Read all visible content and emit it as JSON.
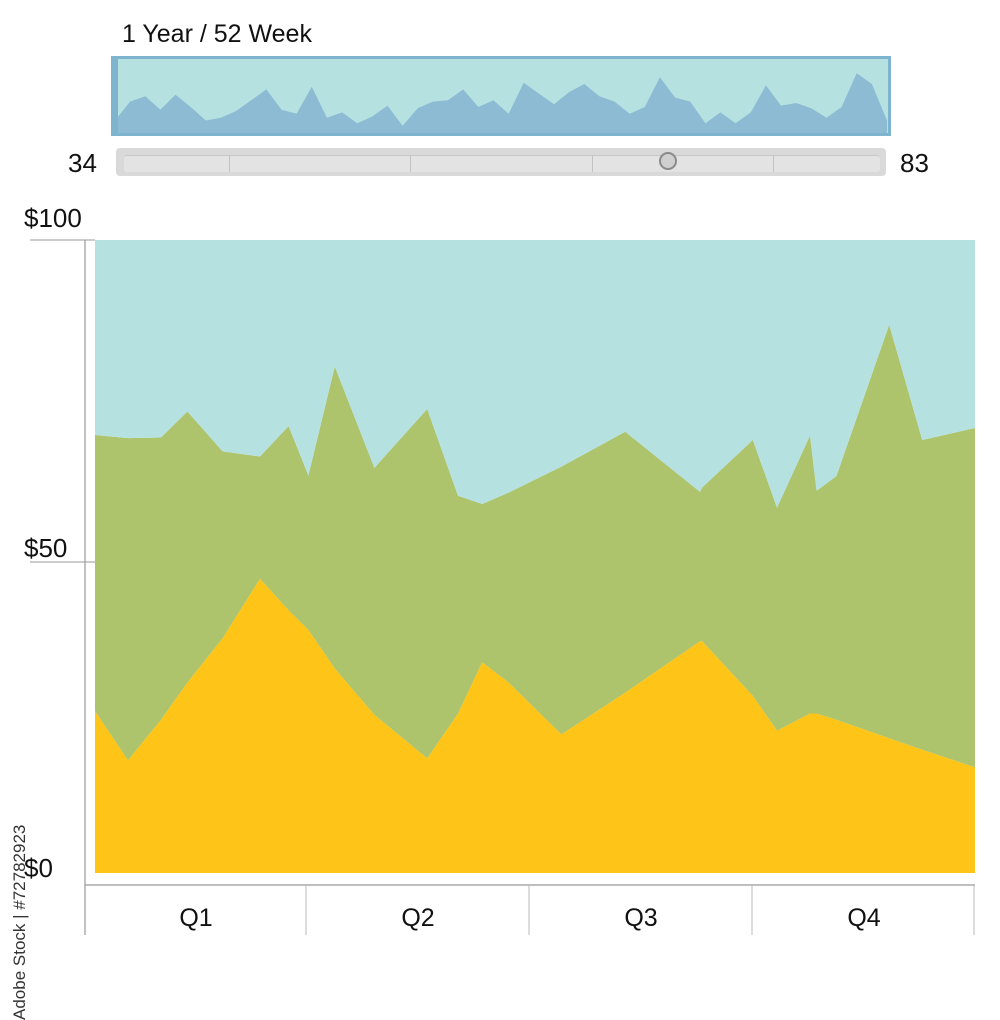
{
  "overview": {
    "title": "1 Year / 52 Week",
    "slider_min": "34",
    "slider_max": "83",
    "slider_position": 0.72,
    "colors": {
      "background": "#b5e1e1",
      "area": "#8dbbd3",
      "border": "#7fb4cf",
      "track": "#d9d9d9"
    }
  },
  "watermark": "Adobe Stock | #72782923",
  "chart_data": {
    "type": "area",
    "stacked": true,
    "categories": [
      "Q1",
      "Q2",
      "Q3",
      "Q4"
    ],
    "yticks": [
      "$0",
      "$50",
      "$100"
    ],
    "ylim": [
      0,
      100
    ],
    "xlim": [
      0,
      4
    ],
    "grid": false,
    "x": [
      0,
      0.15,
      0.3,
      0.42,
      0.58,
      0.75,
      0.88,
      0.97,
      1.09,
      1.27,
      1.51,
      1.65,
      1.76,
      1.88,
      2.12,
      2.41,
      2.75,
      2.76,
      2.99,
      3.1,
      3.25,
      3.28,
      3.37,
      3.61,
      3.76,
      4.0
    ],
    "series": [
      {
        "color": "#fec418",
        "values": [
          25.6,
          17.8,
          24.2,
          30.1,
          37.1,
          46.5,
          41.5,
          38.4,
          32.3,
          25.0,
          18.1,
          25.2,
          33.3,
          30.1,
          21.9,
          28.5,
          36.6,
          36.6,
          28.0,
          22.5,
          25.2,
          25.2,
          24.2,
          21.3,
          19.5,
          16.7
        ]
      },
      {
        "color": "#adc36c",
        "values": [
          43.6,
          50.9,
          44.6,
          42.8,
          29.5,
          19.3,
          29.1,
          24.4,
          47.7,
          39.0,
          55.2,
          34.4,
          25.0,
          30.0,
          42.3,
          41.2,
          23.6,
          24.3,
          40.4,
          35.2,
          43.9,
          35.2,
          38.5,
          65.3,
          48.9,
          53.6
        ]
      },
      {
        "color": "#b5e1e1",
        "values": [
          30.8,
          31.3,
          31.2,
          27.1,
          33.4,
          34.2,
          29.4,
          37.2,
          20.0,
          36.0,
          26.7,
          40.4,
          41.7,
          39.9,
          35.8,
          30.3,
          39.8,
          39.1,
          31.6,
          42.3,
          30.9,
          39.6,
          37.3,
          13.4,
          31.6,
          29.7
        ]
      }
    ],
    "overview_series": [
      10,
      24,
      28,
      18,
      29,
      20,
      10,
      12,
      17,
      25,
      33,
      18,
      15,
      35,
      12,
      16,
      8,
      13,
      21,
      6,
      19,
      24,
      25,
      33,
      20,
      25,
      15,
      38,
      30,
      22,
      31,
      37,
      28,
      24,
      15,
      20,
      42,
      27,
      24,
      8,
      16,
      8,
      16,
      36,
      21,
      23,
      19,
      12,
      20,
      45,
      37,
      10
    ]
  }
}
